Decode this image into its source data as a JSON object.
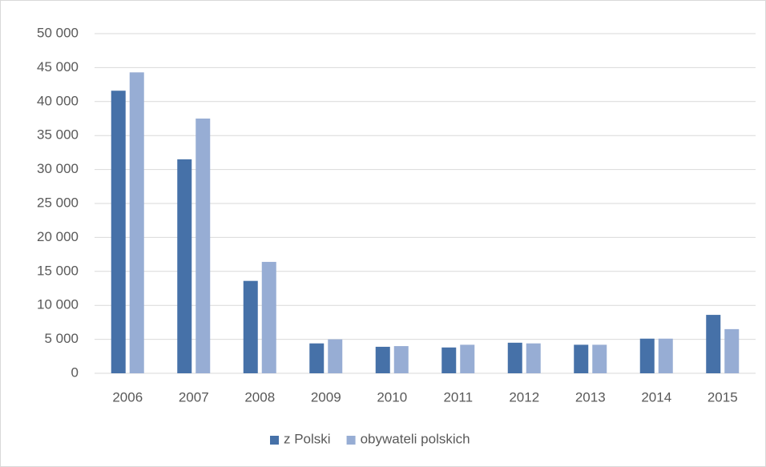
{
  "chart_data": {
    "type": "bar",
    "categories": [
      "2006",
      "2007",
      "2008",
      "2009",
      "2010",
      "2011",
      "2012",
      "2013",
      "2014",
      "2015"
    ],
    "series": [
      {
        "name": "z Polski",
        "color": "#4671a8",
        "values": [
          41600,
          31500,
          13600,
          4400,
          3900,
          3800,
          4500,
          4200,
          5100,
          8600
        ]
      },
      {
        "name": "obywateli polskich",
        "color": "#97add4",
        "values": [
          44300,
          37500,
          16400,
          5000,
          4000,
          4200,
          4400,
          4200,
          5100,
          6500
        ]
      }
    ],
    "ylim": [
      0,
      50000
    ],
    "yticks": [
      0,
      {
        "value": 5000,
        "label": "5 000"
      },
      {
        "value": 10000,
        "label": "10 000"
      },
      {
        "value": 15000,
        "label": "15 000"
      },
      {
        "value": 20000,
        "label": "20 000"
      },
      {
        "value": 25000,
        "label": "25 000"
      },
      {
        "value": 30000,
        "label": "30 000"
      },
      {
        "value": 35000,
        "label": "35 000"
      },
      {
        "value": 40000,
        "label": "40 000"
      },
      {
        "value": 45000,
        "label": "45 000"
      },
      {
        "value": 50000,
        "label": "50 000"
      }
    ],
    "grid": true,
    "legend": "bottom"
  }
}
